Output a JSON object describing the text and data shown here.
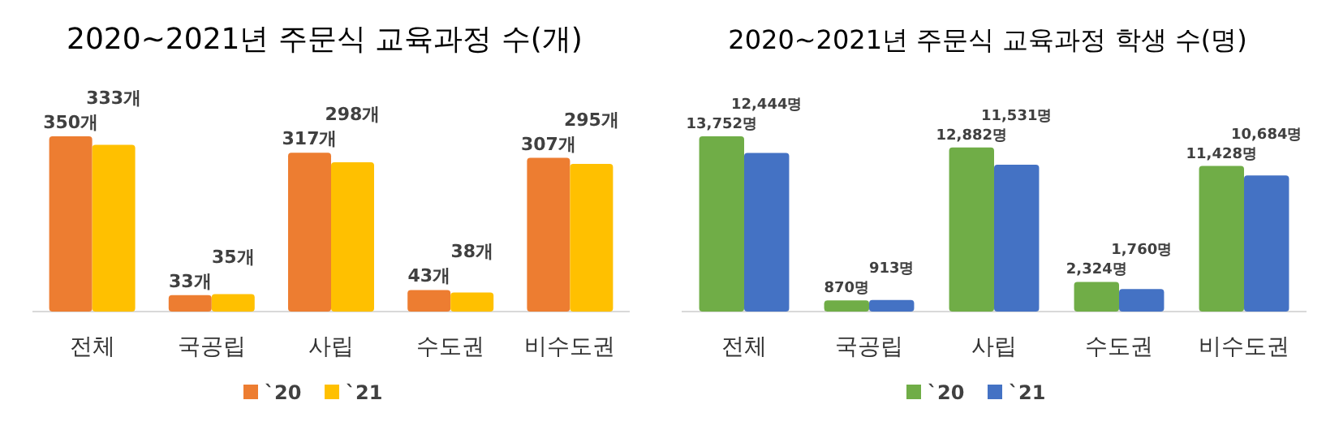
{
  "chart_data": [
    {
      "type": "bar",
      "title": "2020~2021년 주문식 교육과정 수(개)",
      "categories": [
        "전체",
        "국공립",
        "사립",
        "수도권",
        "비수도권"
      ],
      "legend": "bottom",
      "series": [
        {
          "name": "`20",
          "color": "#ed7d31",
          "values": [
            350,
            33,
            317,
            43,
            307
          ],
          "value_labels": [
            "350개",
            "33개",
            "317개",
            "43개",
            "307개"
          ]
        },
        {
          "name": "`21",
          "color": "#ffc000",
          "values": [
            333,
            35,
            298,
            38,
            295
          ],
          "value_labels": [
            "333개",
            "35개",
            "298개",
            "38개",
            "295개"
          ]
        }
      ]
    },
    {
      "type": "bar",
      "title": "2020~2021년 주문식 교육과정 학생 수(명)",
      "categories": [
        "전체",
        "국공립",
        "사립",
        "수도권",
        "비수도권"
      ],
      "legend": "bottom",
      "series": [
        {
          "name": "`20",
          "color": "#70ad47",
          "values": [
            13752,
            870,
            12882,
            2324,
            11428
          ],
          "value_labels": [
            "13,752명",
            "870명",
            "12,882명",
            "2,324명",
            "11,428명"
          ]
        },
        {
          "name": "`21",
          "color": "#4472c4",
          "values": [
            12444,
            913,
            11531,
            1760,
            10684
          ],
          "value_labels": [
            "12,444명",
            "913명",
            "11,531명",
            "1,760명",
            "10,684명"
          ]
        }
      ]
    }
  ]
}
